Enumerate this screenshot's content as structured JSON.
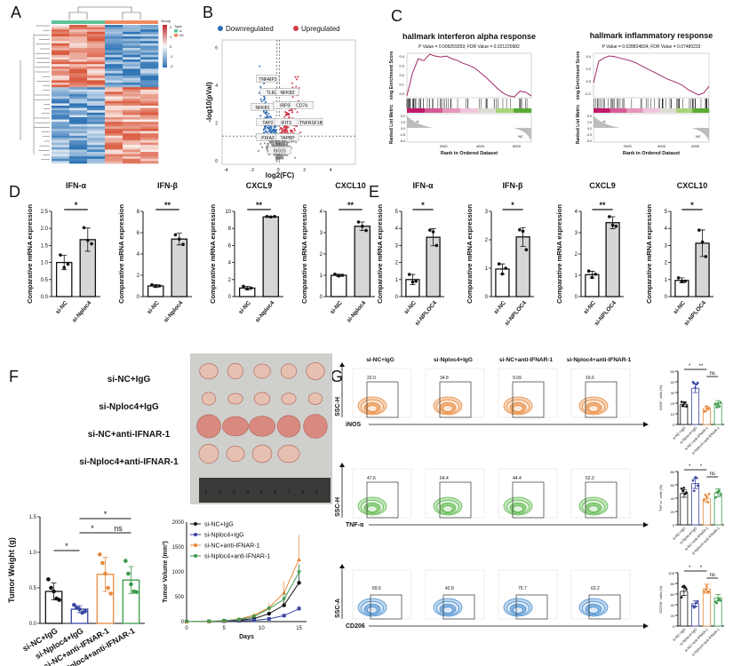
{
  "panel_letters": [
    "A",
    "B",
    "C",
    "D",
    "E",
    "F",
    "G"
  ],
  "colors": {
    "down": "#2f6db5",
    "up": "#d23a4a",
    "ns_gray": "#8a8a8a",
    "bar_fill_treated": "#d6d6d6",
    "g_black": "#111111",
    "g_blue": "#3a45a0",
    "g_orange": "#e8883a",
    "g_green": "#3a9a4a",
    "heat_high": "#d9573a",
    "heat_low": "#2f74b5"
  },
  "heatmap": {
    "legend_title": "Type",
    "legend_items": [
      "si",
      "NC"
    ],
    "legend_colors": [
      "#5ec29a",
      "#f08a60"
    ],
    "colorbar_ticks": [
      "2",
      "1",
      "0",
      "-1",
      "-2"
    ],
    "colorbar_title": "Group"
  },
  "volcano": {
    "legend": [
      "Downregulated",
      "Upregulated"
    ],
    "xlabel": "log2(FC)",
    "ylabel": "-log10(pVal)",
    "xticks": [
      "-4",
      "-2",
      "0",
      "2",
      "4"
    ],
    "yticks": [
      "0",
      "2",
      "4",
      "6"
    ],
    "gene_labels": [
      "TNFAIP3",
      "TLR2",
      "NFKB1",
      "TAP2",
      "PDIA3",
      "NFKB2",
      "IRF9",
      "CD74",
      "IFIT3",
      "TNFRSF1B",
      "TAPBP",
      "ISG15"
    ]
  },
  "gsea": [
    {
      "title": "hallmark interferon alpha response",
      "stats": "P Value = 0.009259259; FDR Value = 0.021220982",
      "ylabel": "ning Enrichment Score",
      "yticks": [
        "0.4",
        "0.3",
        "0.2",
        "0.1",
        "0.0"
      ],
      "ylim": [
        -0.02,
        0.46
      ],
      "es_curve": [
        0,
        0.25,
        0.4,
        0.38,
        0.45,
        0.43,
        0.42,
        0.43,
        0.4,
        0.38,
        0.35,
        0.33,
        0.3,
        0.25,
        0.2,
        0.14,
        0.08,
        0.03,
        0.0,
        -0.01,
        0.05,
        0.04,
        0.0
      ]
    },
    {
      "title": "hallmark inflammatory response",
      "stats": "P Value = 0.028824834; FDR Value = 0.07480233",
      "ylabel": "ning Enrichment Score",
      "yticks": [
        "0.4",
        "0.2",
        "0.0",
        "-0.2"
      ],
      "ylim": [
        -0.22,
        0.44
      ],
      "es_curve": [
        0,
        0.32,
        0.37,
        0.4,
        0.39,
        0.37,
        0.35,
        0.33,
        0.3,
        0.26,
        0.22,
        0.18,
        0.14,
        0.1,
        0.06,
        0.03,
        0.0,
        -0.04,
        -0.1,
        -0.14,
        -0.18,
        -0.15,
        -0.05
      ]
    }
  ],
  "gsea_common": {
    "metric_label": "Ranked List Metric",
    "metric_ticks": [
      "5.0",
      "2.5",
      "0.0",
      "-2.5",
      "-5.0"
    ],
    "xlabel": "Rank in Ordered Dataset",
    "xticks": [
      "2000",
      "4000",
      "6000"
    ],
    "xmax": 6800,
    "tag_si": "si",
    "tag_nc": "NC"
  },
  "panel_D": {
    "ylabel": "Comparative mRNA expression",
    "groups": [
      "si-NC",
      "si-Nploc4"
    ],
    "charts": [
      {
        "title": "IFN-α",
        "ymax": 2.5,
        "yticks": [
          "0.0",
          "0.5",
          "1.0",
          "1.5",
          "2.0",
          "2.5"
        ],
        "means": [
          1.0,
          1.67
        ],
        "sd": [
          0.21,
          0.34
        ],
        "points": [
          [
            1.22,
            0.85,
            0.95
          ],
          [
            2.02,
            1.65,
            1.55
          ]
        ],
        "sig": "*"
      },
      {
        "title": "IFN-β",
        "ymax": 8,
        "yticks": [
          "0",
          "2",
          "4",
          "6",
          "8"
        ],
        "means": [
          1.0,
          5.4
        ],
        "sd": [
          0.12,
          0.55
        ],
        "points": [
          [
            1.1,
            0.95,
            1.0
          ],
          [
            5.8,
            5.4,
            4.9
          ]
        ],
        "sig": "**"
      },
      {
        "title": "CXCL9",
        "ymax": 10,
        "yticks": [
          "0",
          "2",
          "4",
          "6",
          "8",
          "10"
        ],
        "means": [
          1.0,
          9.35
        ],
        "sd": [
          0.2,
          0.05
        ],
        "points": [
          [
            1.2,
            0.9,
            1.0
          ],
          [
            9.4,
            9.35,
            9.4
          ]
        ],
        "sig": "**"
      },
      {
        "title": "CXCL10",
        "ymax": 4,
        "yticks": [
          "0",
          "1",
          "2",
          "3",
          "4"
        ],
        "means": [
          1.0,
          3.3
        ],
        "sd": [
          0.05,
          0.2
        ],
        "points": [
          [
            1.05,
            0.97,
            1.0
          ],
          [
            3.5,
            3.3,
            3.1
          ]
        ],
        "sig": "**"
      }
    ]
  },
  "panel_E": {
    "ylabel": "Comparative mRNA expression",
    "groups": [
      "si-NC",
      "si-NPLOC4"
    ],
    "charts": [
      {
        "title": "IFN-α",
        "ymax": 5,
        "yticks": [
          "0",
          "1",
          "2",
          "3",
          "4",
          "5"
        ],
        "means": [
          1.0,
          3.48
        ],
        "sd": [
          0.3,
          0.5
        ],
        "points": [
          [
            1.3,
            0.85,
            0.9
          ],
          [
            3.9,
            3.8,
            3.0
          ]
        ],
        "sig": "*"
      },
      {
        "title": "IFN-β",
        "ymax": 3,
        "yticks": [
          "0",
          "1",
          "2",
          "3"
        ],
        "means": [
          0.97,
          2.1
        ],
        "sd": [
          0.18,
          0.33
        ],
        "points": [
          [
            1.15,
            0.8,
            1.0
          ],
          [
            2.35,
            2.3,
            1.65
          ]
        ],
        "sig": "*"
      },
      {
        "title": "CXCL9",
        "ymax": 4,
        "yticks": [
          "0",
          "1",
          "2",
          "3",
          "4"
        ],
        "means": [
          1.03,
          3.47
        ],
        "sd": [
          0.16,
          0.28
        ],
        "points": [
          [
            1.2,
            0.9,
            1.05
          ],
          [
            3.75,
            3.35,
            3.3
          ]
        ],
        "sig": "**"
      },
      {
        "title": "CXCL10",
        "ymax": 5,
        "yticks": [
          "0",
          "1",
          "2",
          "3",
          "4",
          "5"
        ],
        "means": [
          0.95,
          3.13
        ],
        "sd": [
          0.15,
          0.78
        ],
        "points": [
          [
            1.1,
            0.9,
            0.9
          ],
          [
            3.9,
            3.2,
            2.35
          ]
        ],
        "sig": "*"
      }
    ]
  },
  "panel_F": {
    "group_labels": [
      "si-NC+IgG",
      "si-Nploc4+IgG",
      "si-NC+anti-IFNAR-1",
      "si-Nploc4+anti-IFNAR-1"
    ],
    "ruler_numbers": [
      "1",
      "2",
      "3",
      "4",
      "5",
      "6",
      "7",
      "8",
      "9"
    ],
    "weight": {
      "ylabel": "Tumor Weight (g)",
      "ymax": 1.5,
      "yticks": [
        "0.0",
        "0.5",
        "1.0",
        "1.5"
      ],
      "means": [
        0.45,
        0.2,
        0.69,
        0.61
      ],
      "sd": [
        0.12,
        0.05,
        0.24,
        0.19
      ],
      "points": [
        [
          0.62,
          0.5,
          0.45,
          0.35,
          0.33
        ],
        [
          0.26,
          0.22,
          0.2,
          0.15,
          0.17
        ],
        [
          0.97,
          0.85,
          0.7,
          0.5,
          0.42
        ],
        [
          0.88,
          0.7,
          0.55,
          0.45,
          0.44
        ]
      ],
      "sigs": [
        {
          "from": 0,
          "to": 1,
          "label": "*"
        },
        {
          "from": 1,
          "to": 2,
          "label": "*"
        },
        {
          "from": 2,
          "to": 3,
          "label": "ns"
        },
        {
          "from": 1,
          "to": 3,
          "label": "*"
        }
      ]
    },
    "volume": {
      "ylabel": "Tumor Volume (mm³)",
      "xlabel": "Days",
      "xticks": [
        "0",
        "5",
        "10",
        "15"
      ],
      "xmax": 16,
      "ymax": 2000,
      "yticks": [
        "0",
        "500",
        "1000",
        "1500",
        "2000"
      ],
      "days": [
        0,
        3,
        5,
        7,
        9,
        11,
        13,
        15
      ],
      "series": [
        {
          "name": "si-NC+IgG",
          "values": [
            0,
            5,
            15,
            30,
            60,
            160,
            330,
            780
          ],
          "err": [
            0,
            2,
            5,
            10,
            20,
            40,
            120,
            370
          ],
          "marker": "circle"
        },
        {
          "name": "si-Nploc4+IgG",
          "values": [
            0,
            3,
            8,
            15,
            25,
            55,
            120,
            260
          ],
          "err": [
            0,
            1,
            3,
            5,
            8,
            15,
            30,
            60
          ],
          "marker": "square"
        },
        {
          "name": "si-NC+anti-IFNAR-1",
          "values": [
            0,
            5,
            20,
            50,
            130,
            280,
            580,
            1250
          ],
          "err": [
            0,
            2,
            6,
            15,
            30,
            90,
            230,
            490
          ],
          "marker": "triangle-up"
        },
        {
          "name": "si-Nploc4+anti-IFNAR-1",
          "values": [
            0,
            5,
            18,
            40,
            100,
            260,
            450,
            990
          ],
          "err": [
            0,
            2,
            5,
            12,
            25,
            60,
            150,
            160
          ],
          "marker": "triangle-down"
        }
      ]
    }
  },
  "panel_G": {
    "column_titles": [
      "si-NC+IgG",
      "si-Nploc4+IgG",
      "si-NC+anti-IFNAR-1",
      "si-Nploc4+anti-IFNAR-1"
    ],
    "rows": [
      {
        "marker": "iNOS",
        "yaxis": "SSC-H",
        "color": "#e8883a",
        "percents": [
          "22.0",
          "34.8",
          "9.09",
          "19.6"
        ],
        "bar": {
          "ylabel": "iNOS⁺ cells (%)",
          "ymax": 50,
          "yticks": [
            "0",
            "10",
            "20",
            "30",
            "40",
            "50"
          ],
          "means": [
            19,
            34,
            15,
            20
          ],
          "sigs": [
            {
              "from": 0,
              "to": 1,
              "label": "*"
            },
            {
              "from": 1,
              "to": 2,
              "label": "**"
            },
            {
              "from": 2,
              "to": 3,
              "label": "ns"
            }
          ]
        }
      },
      {
        "marker": "TNF-α",
        "yaxis": "SSC-H",
        "color": "#5cb84a",
        "percents": [
          "47.6",
          "64.4",
          "44.4",
          "52.2"
        ],
        "bar": {
          "ylabel": "TNF-α⁺ cells (%)",
          "ymax": 80,
          "yticks": [
            "0",
            "20",
            "40",
            "60",
            "80"
          ],
          "means": [
            47,
            62,
            39,
            48
          ],
          "sigs": [
            {
              "from": 0,
              "to": 1,
              "label": "*"
            },
            {
              "from": 1,
              "to": 2,
              "label": "*"
            },
            {
              "from": 2,
              "to": 3,
              "label": "ns"
            }
          ]
        }
      },
      {
        "marker": "CD206",
        "yaxis": "SSC-A",
        "color": "#4a8fd0",
        "percents": [
          "69.5",
          "42.8",
          "75.7",
          "62.2"
        ],
        "bar": {
          "ylabel": "CD206⁺ cells (%)",
          "ymax": 100,
          "yticks": [
            "0",
            "20",
            "40",
            "60",
            "80",
            "100"
          ],
          "means": [
            65,
            42,
            70,
            53
          ],
          "sigs": [
            {
              "from": 0,
              "to": 1,
              "label": "*"
            },
            {
              "from": 1,
              "to": 2,
              "label": "*"
            },
            {
              "from": 2,
              "to": 3,
              "label": "ns"
            }
          ]
        }
      }
    ]
  },
  "chart_data": [
    {
      "type": "heatmap",
      "panel": "A",
      "columns_groups": [
        "si",
        "NC"
      ],
      "colorbar_range": [
        -2,
        2
      ]
    },
    {
      "type": "scatter",
      "panel": "B",
      "xlabel": "log2(FC)",
      "ylabel": "-log10(pVal)",
      "xlim": [
        -4,
        6
      ],
      "ylim": [
        0,
        6
      ],
      "series": [
        {
          "name": "Downregulated"
        },
        {
          "name": "Upregulated"
        }
      ]
    },
    {
      "type": "line",
      "panel": "C",
      "titles": [
        "hallmark interferon alpha response",
        "hallmark inflammatory response"
      ]
    },
    {
      "type": "bar",
      "panel": "D",
      "categories": [
        "si-NC",
        "si-Nploc4"
      ],
      "series": [
        {
          "name": "IFN-α",
          "values": [
            1.0,
            1.67
          ]
        },
        {
          "name": "IFN-β",
          "values": [
            1.0,
            5.4
          ]
        },
        {
          "name": "CXCL9",
          "values": [
            1.0,
            9.35
          ]
        },
        {
          "name": "CXCL10",
          "values": [
            1.0,
            3.3
          ]
        }
      ]
    },
    {
      "type": "bar",
      "panel": "E",
      "categories": [
        "si-NC",
        "si-NPLOC4"
      ],
      "series": [
        {
          "name": "IFN-α",
          "values": [
            1.0,
            3.48
          ]
        },
        {
          "name": "IFN-β",
          "values": [
            0.97,
            2.1
          ]
        },
        {
          "name": "CXCL9",
          "values": [
            1.03,
            3.47
          ]
        },
        {
          "name": "CXCL10",
          "values": [
            0.95,
            3.13
          ]
        }
      ]
    },
    {
      "type": "bar",
      "panel": "F",
      "ylabel": "Tumor Weight (g)",
      "categories": [
        "si-NC+IgG",
        "si-Nploc4+IgG",
        "si-NC+anti-IFNAR-1",
        "si-Nploc4+anti-IFNAR-1"
      ],
      "values": [
        0.45,
        0.2,
        0.69,
        0.61
      ],
      "ylim": [
        0,
        1.5
      ]
    },
    {
      "type": "line",
      "panel": "F",
      "xlabel": "Days",
      "ylabel": "Tumor Volume (mm³)",
      "x": [
        0,
        3,
        5,
        7,
        9,
        11,
        13,
        15
      ],
      "ylim": [
        0,
        2000
      ]
    },
    {
      "type": "bar",
      "panel": "G",
      "categories": [
        "si-NC+IgG",
        "si-Nploc4+IgG",
        "si-NC+anti-IFNAR-1",
        "si-Nploc4+anti-IFNAR-1"
      ],
      "series": [
        {
          "name": "iNOS⁺ cells (%)",
          "values": [
            19,
            34,
            15,
            20
          ]
        },
        {
          "name": "TNF-α⁺ cells (%)",
          "values": [
            47,
            62,
            39,
            48
          ]
        },
        {
          "name": "CD206⁺ cells (%)",
          "values": [
            65,
            42,
            70,
            53
          ]
        }
      ]
    }
  ]
}
